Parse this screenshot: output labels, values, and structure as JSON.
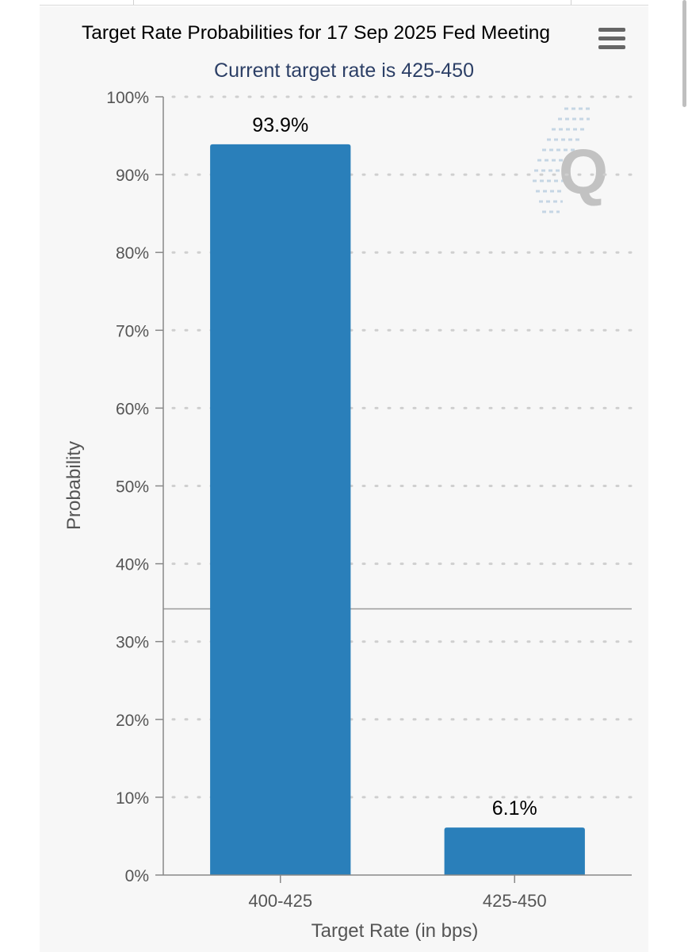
{
  "chart_data": {
    "type": "bar",
    "title": "Target Rate Probabilities for 17 Sep 2025 Fed Meeting",
    "subtitle": "Current target rate is 425-450",
    "xlabel": "Target Rate (in bps)",
    "ylabel": "Probability",
    "categories": [
      "400-425",
      "425-450"
    ],
    "values": [
      93.9,
      6.1
    ],
    "data_labels": [
      "93.9%",
      "6.1%"
    ],
    "ylim": [
      0,
      100
    ],
    "yticks": [
      0,
      10,
      20,
      30,
      40,
      50,
      60,
      70,
      80,
      90,
      100
    ],
    "ytick_labels": [
      "0%",
      "10%",
      "20%",
      "30%",
      "40%",
      "50%",
      "60%",
      "70%",
      "80%",
      "90%",
      "100%"
    ],
    "grid": true,
    "grid_style": "dotted",
    "reference_line_value": 34.2,
    "bar_color": "#2a7fba",
    "watermark_letter": "Q"
  },
  "colors": {
    "background": "#f7f7f7",
    "bar": "#2a7fba",
    "subtitle": "#2c3f66",
    "axis": "#888888",
    "grid": "#cfcfcf",
    "label": "#555555",
    "watermark": "#c2c2c2"
  },
  "toolbar": {
    "menu_icon": "hamburger-menu-icon"
  }
}
